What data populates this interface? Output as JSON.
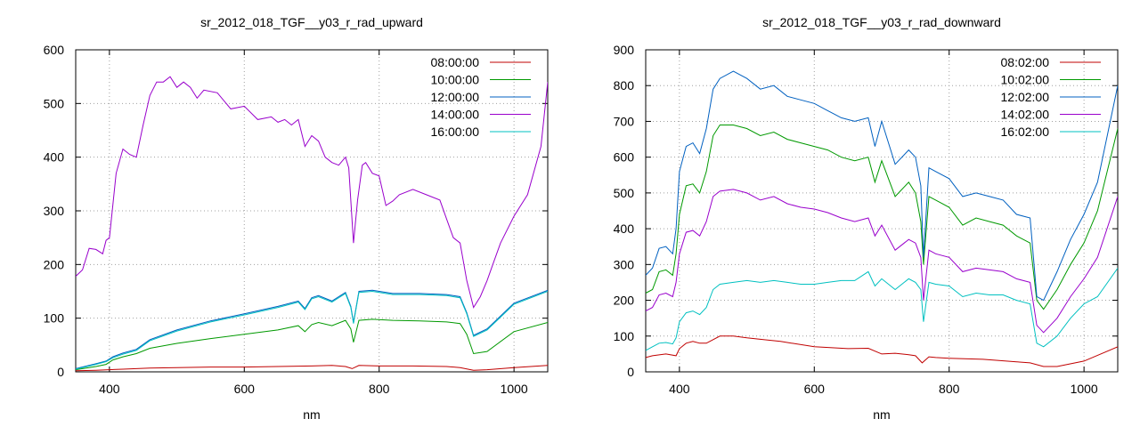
{
  "chart_data": [
    {
      "type": "line",
      "title": "sr_2012_018_TGF__y03_r_rad_upward",
      "xlabel": "nm",
      "ylabel": "",
      "xlim": [
        350,
        1050
      ],
      "ylim": [
        0,
        600
      ],
      "xticks": [
        400,
        600,
        800,
        1000
      ],
      "yticks": [
        0,
        100,
        200,
        300,
        400,
        500,
        600
      ],
      "grid": true,
      "legend_position": "top-right",
      "series": [
        {
          "name": "08:00:00",
          "color": "#c00000",
          "x": [
            350,
            380,
            420,
            460,
            500,
            550,
            600,
            650,
            700,
            730,
            750,
            760,
            770,
            800,
            850,
            900,
            920,
            940,
            960,
            1000,
            1050
          ],
          "y": [
            2,
            3,
            5,
            7,
            8,
            9,
            9,
            10,
            11,
            12,
            10,
            6,
            12,
            11,
            11,
            10,
            8,
            3,
            4,
            8,
            12
          ]
        },
        {
          "name": "10:00:00",
          "color": "#009900",
          "x": [
            350,
            380,
            395,
            405,
            420,
            440,
            460,
            500,
            550,
            600,
            650,
            680,
            690,
            700,
            710,
            730,
            750,
            758,
            762,
            770,
            790,
            820,
            860,
            900,
            920,
            930,
            940,
            960,
            1000,
            1050
          ],
          "y": [
            4,
            10,
            14,
            22,
            28,
            34,
            44,
            53,
            62,
            70,
            78,
            86,
            75,
            88,
            92,
            86,
            96,
            80,
            55,
            96,
            98,
            96,
            95,
            93,
            90,
            70,
            34,
            38,
            75,
            92
          ]
        },
        {
          "name": "12:00:00",
          "color": "#0060c0",
          "x": [
            350,
            380,
            395,
            405,
            420,
            440,
            460,
            500,
            550,
            600,
            650,
            680,
            690,
            700,
            710,
            730,
            750,
            758,
            762,
            770,
            790,
            820,
            860,
            900,
            920,
            930,
            940,
            960,
            1000,
            1050
          ],
          "y": [
            6,
            15,
            20,
            28,
            35,
            42,
            60,
            78,
            95,
            108,
            122,
            132,
            118,
            138,
            142,
            132,
            148,
            122,
            92,
            150,
            152,
            146,
            146,
            144,
            140,
            110,
            68,
            80,
            128,
            152
          ]
        },
        {
          "name": "14:00:00",
          "color": "#9900cc",
          "x": [
            350,
            360,
            370,
            380,
            390,
            395,
            400,
            410,
            420,
            430,
            440,
            450,
            460,
            470,
            480,
            490,
            500,
            510,
            520,
            530,
            540,
            560,
            580,
            600,
            620,
            640,
            650,
            660,
            670,
            680,
            690,
            700,
            710,
            720,
            730,
            740,
            750,
            755,
            762,
            768,
            775,
            780,
            790,
            800,
            810,
            820,
            830,
            850,
            870,
            890,
            900,
            910,
            920,
            930,
            940,
            950,
            960,
            970,
            980,
            1000,
            1020,
            1040,
            1050
          ],
          "y": [
            178,
            190,
            230,
            228,
            220,
            245,
            250,
            370,
            415,
            405,
            400,
            460,
            515,
            540,
            540,
            550,
            530,
            540,
            530,
            510,
            525,
            520,
            490,
            495,
            470,
            475,
            465,
            470,
            460,
            470,
            420,
            440,
            430,
            400,
            390,
            385,
            400,
            380,
            240,
            320,
            385,
            390,
            370,
            365,
            310,
            318,
            330,
            340,
            330,
            320,
            285,
            250,
            240,
            170,
            120,
            140,
            170,
            205,
            240,
            290,
            330,
            420,
            540
          ]
        },
        {
          "name": "16:00:00",
          "color": "#00c0c0",
          "x": [
            350,
            380,
            395,
            405,
            420,
            440,
            460,
            500,
            550,
            600,
            650,
            680,
            690,
            700,
            710,
            730,
            750,
            758,
            762,
            770,
            790,
            820,
            860,
            900,
            920,
            930,
            940,
            960,
            1000,
            1050
          ],
          "y": [
            5,
            14,
            19,
            26,
            33,
            40,
            58,
            76,
            93,
            106,
            120,
            130,
            116,
            136,
            140,
            130,
            146,
            120,
            90,
            148,
            150,
            144,
            144,
            142,
            138,
            108,
            66,
            78,
            126,
            150
          ]
        }
      ]
    },
    {
      "type": "line",
      "title": "sr_2012_018_TGF__y03_r_rad_downward",
      "xlabel": "nm",
      "ylabel": "",
      "xlim": [
        350,
        1050
      ],
      "ylim": [
        0,
        900
      ],
      "xticks": [
        400,
        600,
        800,
        1000
      ],
      "yticks": [
        0,
        100,
        200,
        300,
        400,
        500,
        600,
        700,
        800,
        900
      ],
      "grid": true,
      "legend_position": "top-right",
      "series": [
        {
          "name": "08:02:00",
          "color": "#c00000",
          "x": [
            350,
            360,
            380,
            395,
            400,
            410,
            420,
            430,
            440,
            460,
            480,
            500,
            550,
            600,
            650,
            680,
            700,
            720,
            740,
            750,
            760,
            770,
            780,
            800,
            850,
            900,
            920,
            940,
            960,
            1000,
            1050
          ],
          "y": [
            40,
            45,
            50,
            45,
            65,
            80,
            85,
            80,
            80,
            100,
            100,
            95,
            85,
            70,
            65,
            66,
            50,
            52,
            48,
            45,
            25,
            42,
            40,
            38,
            35,
            28,
            25,
            15,
            15,
            30,
            70
          ]
        },
        {
          "name": "10:02:00",
          "color": "#009900",
          "x": [
            350,
            360,
            370,
            380,
            390,
            395,
            400,
            410,
            420,
            430,
            440,
            450,
            460,
            480,
            500,
            520,
            540,
            560,
            580,
            600,
            620,
            640,
            660,
            680,
            690,
            700,
            720,
            740,
            750,
            758,
            762,
            770,
            780,
            800,
            820,
            840,
            860,
            880,
            900,
            920,
            930,
            940,
            960,
            980,
            1000,
            1020,
            1050
          ],
          "y": [
            220,
            230,
            280,
            285,
            270,
            330,
            440,
            520,
            525,
            500,
            560,
            660,
            690,
            690,
            680,
            660,
            670,
            650,
            640,
            630,
            620,
            600,
            590,
            600,
            530,
            590,
            490,
            530,
            500,
            420,
            300,
            490,
            480,
            460,
            410,
            430,
            420,
            410,
            380,
            360,
            200,
            175,
            230,
            300,
            360,
            450,
            680
          ]
        },
        {
          "name": "12:02:00",
          "color": "#0060c0",
          "x": [
            350,
            360,
            370,
            380,
            390,
            395,
            400,
            410,
            420,
            430,
            440,
            450,
            460,
            480,
            500,
            520,
            540,
            560,
            580,
            600,
            620,
            640,
            660,
            680,
            690,
            700,
            720,
            740,
            750,
            758,
            762,
            770,
            780,
            800,
            820,
            840,
            860,
            880,
            900,
            920,
            930,
            940,
            960,
            980,
            1000,
            1020,
            1050
          ],
          "y": [
            270,
            290,
            345,
            350,
            330,
            400,
            560,
            630,
            640,
            610,
            680,
            790,
            820,
            840,
            820,
            790,
            800,
            770,
            760,
            750,
            730,
            710,
            700,
            710,
            630,
            700,
            580,
            620,
            600,
            520,
            320,
            570,
            560,
            540,
            490,
            500,
            490,
            480,
            440,
            430,
            210,
            200,
            280,
            370,
            440,
            530,
            800
          ]
        },
        {
          "name": "14:02:00",
          "color": "#9900cc",
          "x": [
            350,
            360,
            370,
            380,
            390,
            395,
            400,
            410,
            420,
            430,
            440,
            450,
            460,
            480,
            500,
            520,
            540,
            560,
            580,
            600,
            620,
            640,
            660,
            680,
            690,
            700,
            720,
            740,
            750,
            758,
            762,
            770,
            780,
            800,
            820,
            840,
            860,
            880,
            900,
            920,
            930,
            940,
            960,
            980,
            1000,
            1020,
            1050
          ],
          "y": [
            170,
            180,
            215,
            220,
            210,
            250,
            330,
            390,
            395,
            380,
            420,
            490,
            505,
            510,
            500,
            480,
            490,
            470,
            460,
            455,
            445,
            430,
            420,
            430,
            380,
            410,
            340,
            370,
            360,
            320,
            200,
            340,
            330,
            320,
            280,
            290,
            285,
            280,
            260,
            250,
            130,
            110,
            150,
            210,
            260,
            320,
            490
          ]
        },
        {
          "name": "16:02:00",
          "color": "#00c0c0",
          "x": [
            350,
            360,
            370,
            380,
            390,
            395,
            400,
            410,
            420,
            430,
            440,
            450,
            460,
            480,
            500,
            520,
            540,
            560,
            580,
            600,
            620,
            640,
            660,
            680,
            690,
            700,
            720,
            740,
            750,
            758,
            762,
            770,
            780,
            800,
            820,
            840,
            860,
            880,
            900,
            920,
            930,
            940,
            960,
            980,
            1000,
            1020,
            1050
          ],
          "y": [
            60,
            70,
            80,
            82,
            78,
            95,
            140,
            165,
            170,
            160,
            180,
            230,
            245,
            250,
            255,
            250,
            255,
            250,
            245,
            245,
            250,
            255,
            255,
            280,
            240,
            260,
            230,
            260,
            250,
            230,
            140,
            250,
            245,
            240,
            210,
            220,
            215,
            215,
            200,
            190,
            80,
            70,
            100,
            150,
            190,
            210,
            290
          ]
        }
      ]
    }
  ]
}
